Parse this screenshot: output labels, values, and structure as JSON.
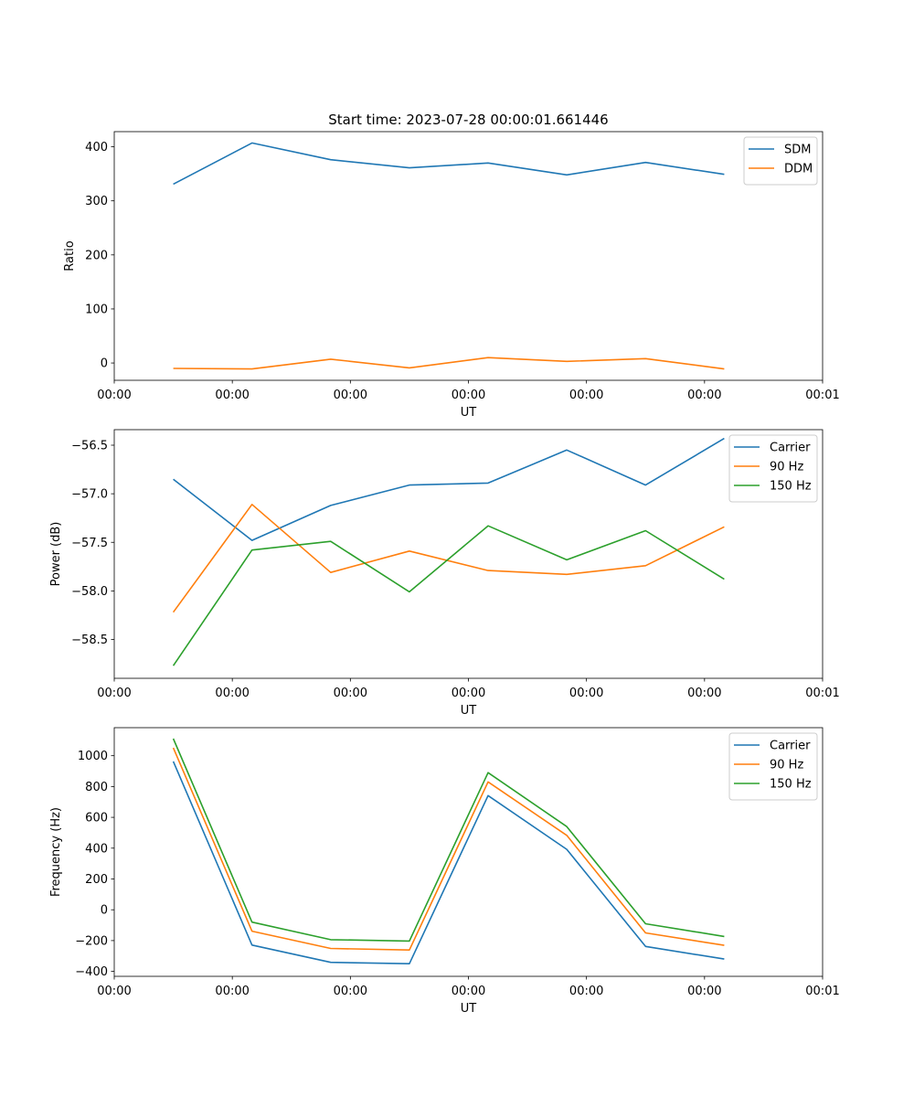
{
  "figure_title": "Start time: 2023-07-28 00:00:01.661446",
  "colors": {
    "blue": "#1f77b4",
    "orange": "#ff7f0e",
    "green": "#2ca02c"
  },
  "chart_data": [
    {
      "type": "line",
      "title": "Start time: 2023-07-28 00:00:01.661446",
      "xlabel": "UT",
      "ylabel": "Ratio",
      "x": [
        1,
        2,
        3,
        4,
        5,
        6,
        7,
        8
      ],
      "xlim": [
        0.25,
        9.25
      ],
      "x_ticks": [
        0.25,
        1.75,
        3.25,
        4.75,
        6.25,
        7.75,
        9.25
      ],
      "x_tick_labels": [
        "00:00",
        "00:00",
        "00:00",
        "00:00",
        "00:00",
        "00:00",
        "00:01"
      ],
      "ylim": [
        -32,
        428
      ],
      "y_ticks": [
        0,
        100,
        200,
        300,
        400
      ],
      "y_tick_labels": [
        "0",
        "100",
        "200",
        "300",
        "400"
      ],
      "legend_position": "top-right",
      "series": [
        {
          "name": "SDM",
          "color": "#1f77b4",
          "values": [
            331,
            407,
            376,
            361,
            370,
            348,
            371,
            349
          ]
        },
        {
          "name": "DDM",
          "color": "#ff7f0e",
          "values": [
            -10,
            -11,
            7,
            -9,
            10,
            3,
            8,
            -11
          ]
        }
      ]
    },
    {
      "type": "line",
      "title": "",
      "xlabel": "UT",
      "ylabel": "Power (dB)",
      "x": [
        1,
        2,
        3,
        4,
        5,
        6,
        7,
        8
      ],
      "xlim": [
        0.25,
        9.25
      ],
      "x_ticks": [
        0.25,
        1.75,
        3.25,
        4.75,
        6.25,
        7.75,
        9.25
      ],
      "x_tick_labels": [
        "00:00",
        "00:00",
        "00:00",
        "00:00",
        "00:00",
        "00:00",
        "00:01"
      ],
      "ylim": [
        -58.9,
        -56.34
      ],
      "y_ticks": [
        -56.5,
        -57.0,
        -57.5,
        -58.0,
        -58.5
      ],
      "y_tick_labels": [
        "−56.5",
        "−57.0",
        "−57.5",
        "−58.0",
        "−58.5"
      ],
      "legend_position": "top-right",
      "series": [
        {
          "name": "Carrier",
          "color": "#1f77b4",
          "values": [
            -56.85,
            -57.48,
            -57.12,
            -56.91,
            -56.89,
            -56.55,
            -56.91,
            -56.43
          ]
        },
        {
          "name": "90 Hz",
          "color": "#ff7f0e",
          "values": [
            -58.22,
            -57.11,
            -57.81,
            -57.59,
            -57.79,
            -57.83,
            -57.74,
            -57.34
          ]
        },
        {
          "name": "150 Hz",
          "color": "#2ca02c",
          "values": [
            -58.77,
            -57.58,
            -57.49,
            -58.01,
            -57.33,
            -57.68,
            -57.38,
            -57.88
          ]
        }
      ]
    },
    {
      "type": "line",
      "title": "",
      "xlabel": "UT",
      "ylabel": "Frequency (Hz)",
      "x": [
        1,
        2,
        3,
        4,
        5,
        6,
        7,
        8
      ],
      "xlim": [
        0.25,
        9.25
      ],
      "x_ticks": [
        0.25,
        1.75,
        3.25,
        4.75,
        6.25,
        7.75,
        9.25
      ],
      "x_tick_labels": [
        "00:00",
        "00:00",
        "00:00",
        "00:00",
        "00:00",
        "00:00",
        "00:01"
      ],
      "ylim": [
        -432,
        1182
      ],
      "y_ticks": [
        1000,
        800,
        600,
        400,
        200,
        0,
        -200,
        -400
      ],
      "y_tick_labels": [
        "1000",
        "800",
        "600",
        "400",
        "200",
        "0",
        "−200",
        "−400"
      ],
      "legend_position": "top-right",
      "series": [
        {
          "name": "Carrier",
          "color": "#1f77b4",
          "values": [
            963,
            -229,
            -341,
            -350,
            741,
            392,
            -238,
            -320
          ]
        },
        {
          "name": "90 Hz",
          "color": "#ff7f0e",
          "values": [
            1051,
            -139,
            -251,
            -261,
            830,
            483,
            -150,
            -231
          ]
        },
        {
          "name": "150 Hz",
          "color": "#2ca02c",
          "values": [
            1111,
            -80,
            -194,
            -203,
            890,
            540,
            -91,
            -173
          ]
        }
      ]
    }
  ]
}
